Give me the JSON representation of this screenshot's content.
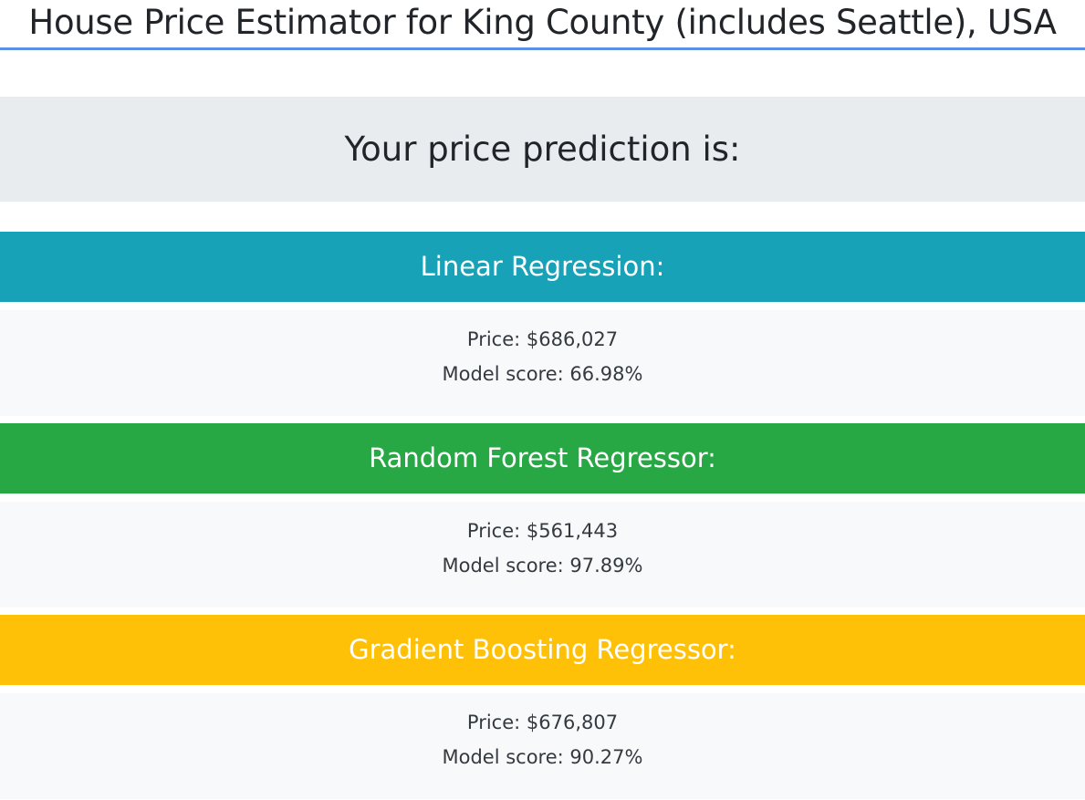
{
  "page": {
    "title": "House Price Estimator for King County (includes Seattle), USA"
  },
  "prediction": {
    "heading": "Your price prediction is:"
  },
  "models": [
    {
      "name": "Linear Regression:",
      "price": "Price: $686,027",
      "score": "Model score: 66.98%",
      "color": "#17a2b8"
    },
    {
      "name": "Random Forest Regressor:",
      "price": "Price: $561,443",
      "score": "Model score: 97.89%",
      "color": "#28a745"
    },
    {
      "name": "Gradient Boosting Regressor:",
      "price": "Price: $676,807",
      "score": "Model score: 90.27%",
      "color": "#ffc107"
    }
  ],
  "theme": {
    "title_underline": "#5b8fe8",
    "jumbotron_bg": "#e9ecef",
    "card_body_bg": "#f8f9fa"
  }
}
